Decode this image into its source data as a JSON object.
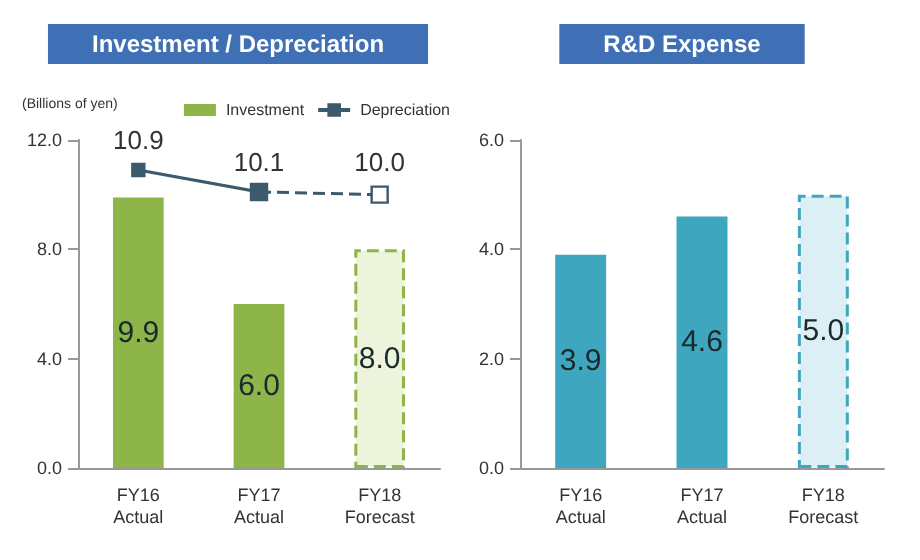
{
  "chart_data": [
    {
      "type": "bar",
      "title": "Investment / Depreciation",
      "ylabel": "(Billions of yen)",
      "categories": [
        "FY16\nActual",
        "FY17\nActual",
        "FY18\nForecast"
      ],
      "series": [
        {
          "name": "Investment",
          "color": "#8db54a",
          "values": [
            9.9,
            6.0,
            null
          ],
          "value_labels": [
            "9.9",
            "6.0",
            null
          ]
        },
        {
          "color": "#8db54a",
          "colors": [
            null,
            null,
            "#eef3dc"
          ],
          "values": [
            null,
            null,
            8.0
          ],
          "line_style": "dashed",
          "value_labels": [
            null,
            null,
            "8.0"
          ]
        },
        {
          "type": "line",
          "name": "Depreciation",
          "color": "#3d5a6c",
          "values": [
            10.9,
            10.1,
            null
          ],
          "marker": "square"
        },
        {
          "type": "line",
          "color": "#3d5a6c",
          "values": [
            null,
            10.1,
            10.0
          ],
          "line_style": "dashed",
          "marker": "square",
          "value_labels": [
            null,
            null,
            "10.0"
          ]
        }
      ],
      "ylim": [
        0,
        12
      ],
      "yticks": [
        {
          "value": 0,
          "label": "0.0"
        },
        {
          "value": 4,
          "label": "4.0"
        },
        {
          "value": 8,
          "label": "8.0"
        },
        {
          "value": 12,
          "label": "12.0"
        }
      ],
      "grid": false,
      "legend": "top right",
      "data_labels": true
    },
    {
      "type": "bar",
      "title": "R&D Expense",
      "categories": [
        "FY16\nActual",
        "FY17\nActual",
        "FY18\nForecast"
      ],
      "series": [
        {
          "color": "#3fa6bf",
          "values": [
            3.9,
            4.6,
            null
          ]
        },
        {
          "color": "#3fa6bf",
          "colors": [
            null,
            null,
            "#dceff5"
          ],
          "values": [
            null,
            null,
            5.0
          ],
          "line_style": "dashed",
          "value_labels": [
            null,
            null,
            "5.0"
          ]
        }
      ],
      "ylim": [
        0,
        6
      ],
      "yticks": [
        {
          "value": 0,
          "label": "0.0"
        },
        {
          "value": 2,
          "label": "2.0"
        },
        {
          "value": 4,
          "label": "4.0"
        },
        {
          "value": 6,
          "label": "6.0"
        }
      ],
      "grid": false,
      "legend": false,
      "data_labels": true
    }
  ]
}
